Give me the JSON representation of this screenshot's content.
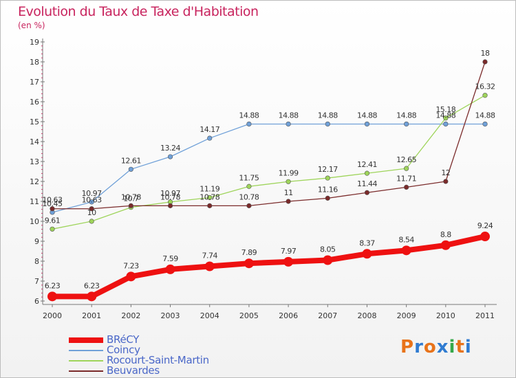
{
  "title": "Evolution du Taux de Taxe d'Habitation",
  "subtitle": "(en %)",
  "logo": {
    "text": "Proxiti",
    "letters": [
      "P",
      "r",
      "o",
      "x",
      "i",
      "t",
      "i"
    ],
    "colors": [
      "#e8731a",
      "#2f7bd1",
      "#e8731a",
      "#2f7bd1",
      "#35a84a",
      "#e8731a",
      "#2f7bd1"
    ]
  },
  "chart_data": {
    "type": "line",
    "x": [
      "2000",
      "2001",
      "2002",
      "2003",
      "2004",
      "2005",
      "2006",
      "2007",
      "2008",
      "2009",
      "2010",
      "2011"
    ],
    "ylim": [
      6,
      19
    ],
    "yticks": [
      "6",
      "7",
      "8",
      "9",
      "10",
      "11",
      "12",
      "13",
      "14",
      "15",
      "16",
      "17",
      "18",
      "19"
    ],
    "grid": false,
    "legend_position": "bottom-left",
    "series": [
      {
        "name": "BRéCY",
        "color": "#ee1111",
        "values": [
          6.23,
          6.23,
          7.23,
          7.59,
          7.74,
          7.89,
          7.97,
          8.05,
          8.37,
          8.54,
          8.8,
          9.24
        ],
        "labels": [
          "6.23",
          "6.23",
          "7.23",
          "7.59",
          "7.74",
          "7.89",
          "7.97",
          "8.05",
          "8.37",
          "8.54",
          "8.8",
          "9.24"
        ]
      },
      {
        "name": "Coincy",
        "color": "#6fa0d8",
        "values": [
          10.45,
          10.97,
          12.61,
          13.24,
          14.17,
          14.88,
          14.88,
          14.88,
          14.88,
          14.88,
          14.88,
          14.88
        ],
        "labels": [
          "10.45",
          "10.97",
          "12.61",
          "13.24",
          "14.17",
          "14.88",
          "14.88",
          "14.88",
          "14.88",
          "14.88",
          "14.88",
          "14.88"
        ]
      },
      {
        "name": "Rocourt-Saint-Martin",
        "color": "#9ed45a",
        "values": [
          9.61,
          10,
          10.7,
          10.97,
          11.19,
          11.75,
          11.99,
          12.17,
          12.41,
          12.65,
          15.18,
          16.32
        ],
        "labels": [
          "9.61",
          "10",
          "10.7",
          "10.97",
          "11.19",
          "11.75",
          "11.99",
          "12.17",
          "12.41",
          "12.65",
          "15.18",
          "16.32"
        ]
      },
      {
        "name": "Beuvardes",
        "color": "#7a2a2a",
        "values": [
          10.63,
          10.63,
          10.78,
          10.78,
          10.78,
          10.78,
          11,
          11.16,
          11.44,
          11.71,
          12,
          18
        ],
        "labels": [
          "10.63",
          "10.63",
          "10.78",
          "10.78",
          "10.78",
          "10.78",
          "11",
          "11.16",
          "11.44",
          "11.71",
          "12",
          "18"
        ]
      }
    ]
  }
}
